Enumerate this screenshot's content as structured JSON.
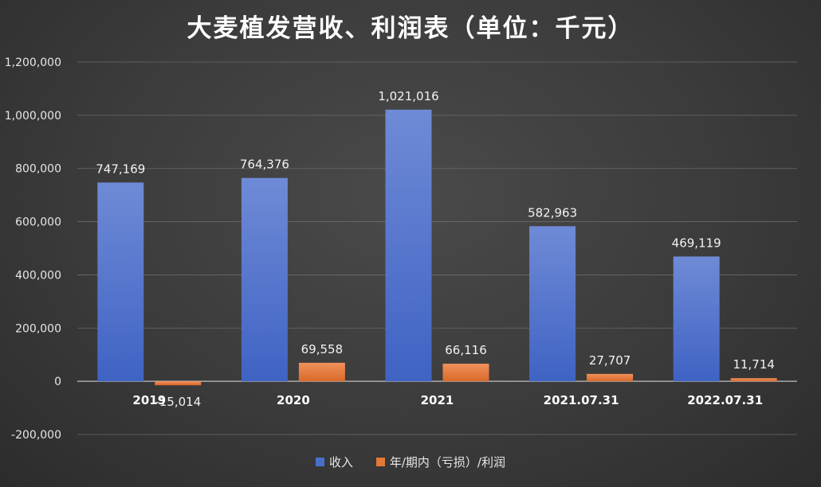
{
  "chart_data": {
    "type": "bar",
    "title": "大麦植发营收、利润表（单位：千元）",
    "categories": [
      "2019",
      "2020",
      "2021",
      "2021.07.31",
      "2022.07.31"
    ],
    "series": [
      {
        "name": "收入",
        "values": [
          747169,
          764376,
          1021016,
          582963,
          469119
        ],
        "color": "#4a6fc9"
      },
      {
        "name": "年/期内（亏损）/利润",
        "values": [
          -15014,
          69558,
          66116,
          27707,
          11714
        ],
        "color": "#e07a35"
      }
    ],
    "data_labels": {
      "收入": [
        "747,169",
        "764,376",
        "1,021,016",
        "582,963",
        "469,119"
      ],
      "年/期内（亏损）/利润": [
        "-15,014",
        "69,558",
        "66,116",
        "27,707",
        "11,714"
      ]
    },
    "ylim": [
      -200000,
      1200000
    ],
    "yticks": [
      -200000,
      0,
      200000,
      400000,
      600000,
      800000,
      1000000,
      1200000
    ],
    "ytick_labels": [
      "-200,000",
      "0",
      "200,000",
      "400,000",
      "600,000",
      "800,000",
      "1,000,000",
      "1,200,000"
    ],
    "xlabel": "",
    "ylabel": "",
    "grid": true,
    "legend_position": "bottom"
  }
}
